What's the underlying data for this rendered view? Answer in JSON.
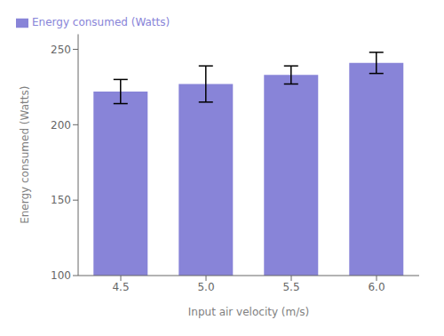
{
  "chart_data": {
    "type": "bar",
    "categories": [
      "4.5",
      "5.0",
      "5.5",
      "6.0"
    ],
    "series": [
      {
        "name": "Energy consumed (Watts)",
        "color": "#8884d8",
        "values": [
          222,
          227,
          233,
          241
        ],
        "errors": [
          8,
          12,
          6,
          7
        ]
      }
    ],
    "xlabel": "Input air velocity (m/s)",
    "ylabel": "Energy consumed (Watts)",
    "ylim": [
      100,
      260
    ],
    "yticks": [
      100,
      150,
      200,
      250
    ],
    "grid": false,
    "legend": "upper left"
  }
}
